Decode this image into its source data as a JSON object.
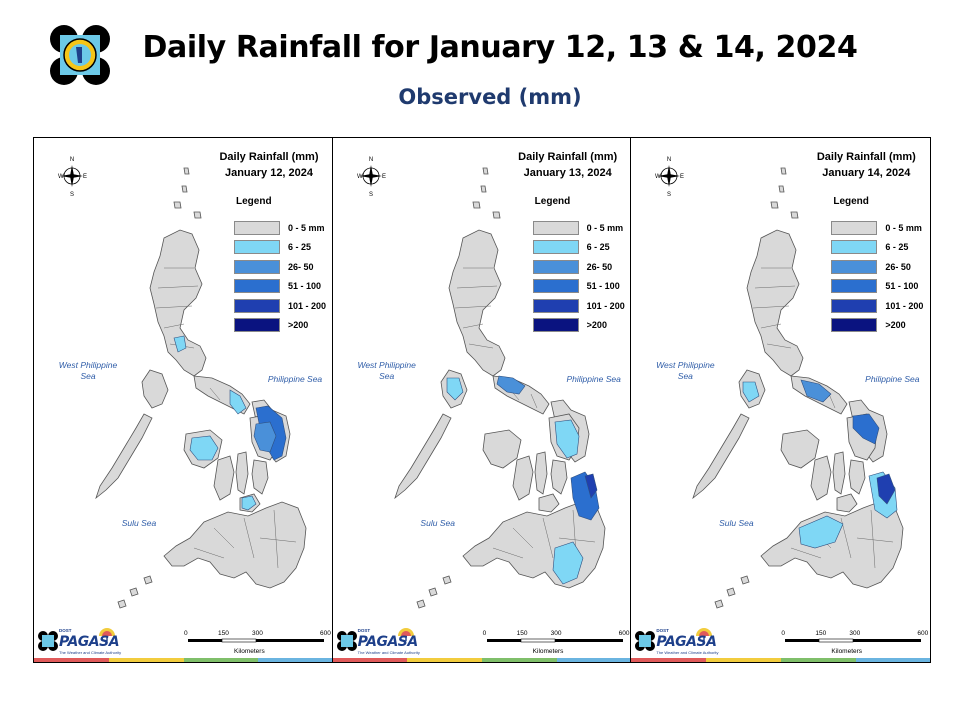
{
  "header": {
    "title": "Daily Rainfall for January 12, 13 & 14, 2024",
    "subtitle": "Observed (mm)"
  },
  "legend": {
    "title": "Legend",
    "classes": [
      {
        "label": "0 - 5 mm",
        "color": "#d9d9d9"
      },
      {
        "label": "6 - 25",
        "color": "#7fd7f5"
      },
      {
        "label": "26- 50",
        "color": "#4a90d9"
      },
      {
        "label": "51 - 100",
        "color": "#2b6fcf"
      },
      {
        "label": "101 - 200",
        "color": "#1f3fb0"
      },
      {
        "label": ">200",
        "color": "#0a1380"
      }
    ]
  },
  "seas": {
    "west": "West Philippine Sea",
    "philippine": "Philippine Sea",
    "sulu": "Sulu Sea"
  },
  "compass": {
    "n": "N",
    "s": "S",
    "e": "E",
    "w": "W"
  },
  "scale": {
    "ticks": [
      "0",
      "150",
      "300",
      "600"
    ],
    "unit": "Kilometers"
  },
  "brand": {
    "name": "PAGASA",
    "small": "DOST",
    "tagline": "The Weather and Climate Authority"
  },
  "maps": [
    {
      "title_line1": "Daily Rainfall (mm)",
      "title_line2": "January 12, 2024",
      "rain_areas": [
        {
          "region": "Catanduanes / Eastern Bicol",
          "class": "51 - 100"
        },
        {
          "region": "Samar / Northern Samar",
          "class": "26- 50"
        },
        {
          "region": "Albay / Sorsogon",
          "class": "6 - 25"
        },
        {
          "region": "Panay",
          "class": "6 - 25"
        },
        {
          "region": "Bohol",
          "class": "6 - 25"
        }
      ]
    },
    {
      "title_line1": "Daily Rainfall (mm)",
      "title_line2": "January 13, 2024",
      "rain_areas": [
        {
          "region": "Camarines Norte / Quezon",
          "class": "26- 50"
        },
        {
          "region": "Mindoro",
          "class": "6 - 25"
        },
        {
          "region": "Eastern Samar / Leyte",
          "class": "6 - 25"
        },
        {
          "region": "Surigao / Dinagat",
          "class": "51 - 100"
        },
        {
          "region": "Davao / Cotabato",
          "class": "6 - 25"
        }
      ]
    },
    {
      "title_line1": "Daily Rainfall (mm)",
      "title_line2": "January 14, 2024",
      "rain_areas": [
        {
          "region": "Bicol",
          "class": "26- 50"
        },
        {
          "region": "Mindoro",
          "class": "6 - 25"
        },
        {
          "region": "Eastern Samar",
          "class": "51 - 100"
        },
        {
          "region": "Surigao / Dinagat",
          "class": "101 - 200"
        },
        {
          "region": "Northern Mindanao / Bukidnon",
          "class": "6 - 25"
        }
      ]
    }
  ],
  "colors": {
    "land": "#d9d9d9",
    "stroke": "#555555",
    "c1": "#7fd7f5",
    "c2": "#4a90d9",
    "c3": "#2b6fcf",
    "c4": "#1f3fb0",
    "sea_text": "#2f5da8",
    "title_text": "#1f3a6e",
    "strip": [
      "#e05a5a",
      "#f2cc3d",
      "#7fbf6a",
      "#6ab4e0"
    ]
  }
}
